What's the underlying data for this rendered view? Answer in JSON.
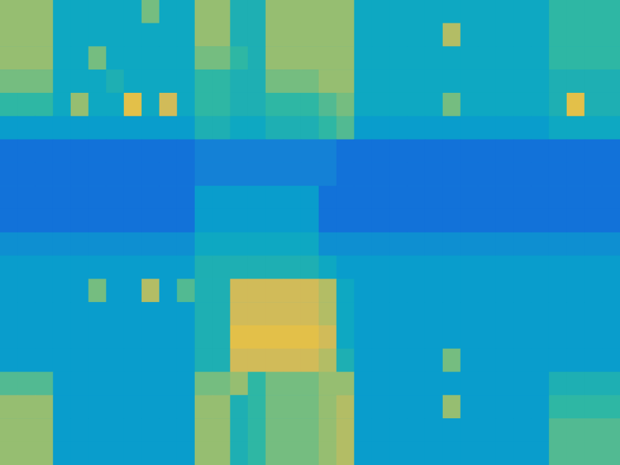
{
  "chart_data": {
    "type": "heatmap",
    "tick_labels": false,
    "grid": false,
    "color_range": [
      0,
      10
    ],
    "cells": [
      [
        6.5,
        6.5,
        6.5,
        4,
        4,
        4,
        4,
        4,
        6,
        4,
        4,
        6.5,
        6.5,
        4.5,
        4.5,
        6.5,
        6.5,
        6.5,
        6.5,
        6.5,
        4,
        4,
        4,
        4,
        4,
        4,
        4,
        4,
        4,
        4,
        4,
        5,
        5,
        5,
        5
      ],
      [
        6.5,
        6.5,
        6.5,
        4,
        4,
        4,
        4,
        4,
        4,
        4,
        4,
        6.5,
        6.5,
        4.5,
        4.5,
        6.5,
        6.5,
        6.5,
        6.5,
        6.5,
        4,
        4,
        4,
        4,
        4,
        7,
        4,
        4,
        4,
        4,
        4,
        5,
        5,
        5,
        5
      ],
      [
        6.5,
        6.5,
        6.5,
        4,
        4,
        6,
        4,
        4,
        4,
        4,
        4,
        6,
        6,
        5,
        4.5,
        6.5,
        6.5,
        6.5,
        6.5,
        6.5,
        4,
        4,
        4,
        4,
        4,
        4,
        4,
        4,
        4,
        4,
        4,
        5,
        5,
        5,
        5
      ],
      [
        6,
        6,
        6,
        4,
        4,
        4,
        4.5,
        4,
        4,
        4,
        4,
        5,
        5,
        4.5,
        4.5,
        6,
        6,
        6,
        6.5,
        6.5,
        4,
        4,
        4,
        4,
        4,
        4,
        4,
        4,
        4,
        4,
        4,
        4.5,
        4.5,
        4.5,
        4.5
      ],
      [
        5,
        5,
        5,
        4,
        6.5,
        4,
        4,
        8,
        4,
        7.5,
        4,
        5,
        5,
        4.5,
        4.5,
        5,
        5,
        5,
        5.5,
        6,
        4,
        4,
        4,
        4,
        4,
        6,
        4,
        4,
        4,
        4,
        4,
        4.5,
        8,
        4.5,
        4.5
      ],
      [
        3.5,
        3.5,
        3.5,
        3.5,
        3.5,
        3.5,
        3.5,
        3.5,
        3.5,
        3.5,
        3.5,
        4.5,
        4.5,
        4,
        4,
        4.5,
        4.5,
        4.5,
        5,
        5.5,
        3.5,
        3.5,
        3.5,
        3.5,
        3.5,
        3.5,
        3.5,
        3.5,
        3.5,
        3.5,
        3.5,
        4,
        4,
        4,
        4
      ],
      [
        2,
        2,
        2,
        2,
        2,
        2,
        2,
        2,
        2,
        2,
        2,
        2.5,
        2.5,
        2.5,
        2.5,
        2.5,
        2.5,
        2.5,
        2.5,
        2,
        2,
        2,
        2,
        2,
        2,
        2,
        2,
        2,
        2,
        2,
        2,
        2,
        2,
        2,
        2
      ],
      [
        2,
        2,
        2,
        2,
        2,
        2,
        2,
        2,
        2,
        2,
        2,
        2.5,
        2.5,
        2.5,
        2.5,
        2.5,
        2.5,
        2.5,
        2.5,
        2,
        2,
        2,
        2,
        2,
        2,
        2,
        2,
        2,
        2,
        2,
        2,
        2,
        2,
        2,
        2
      ],
      [
        2,
        2,
        2,
        2,
        2,
        2,
        2,
        2,
        2,
        2,
        2,
        3.5,
        3.5,
        3.5,
        3.5,
        3.5,
        3.5,
        3.5,
        2,
        2,
        2,
        2,
        2,
        2,
        2,
        2,
        2,
        2,
        2,
        2,
        2,
        2,
        2,
        2,
        2
      ],
      [
        2,
        2,
        2,
        2,
        2,
        2,
        2,
        2,
        2,
        2,
        2,
        3.5,
        3.5,
        3.5,
        3.5,
        3.5,
        3.5,
        3.5,
        2,
        2,
        2,
        2,
        2,
        2,
        2,
        2,
        2,
        2,
        2,
        2,
        2,
        2,
        2,
        2,
        2
      ],
      [
        3,
        3,
        3,
        3,
        3,
        3,
        3,
        3,
        3,
        3,
        3,
        4,
        4,
        4,
        4,
        4,
        4,
        4,
        3,
        3,
        3,
        3,
        3,
        3,
        3,
        3,
        3,
        3,
        3,
        3,
        3,
        3,
        3,
        3,
        3
      ],
      [
        3.5,
        3.5,
        3.5,
        3.5,
        3.5,
        3.5,
        3.5,
        3.5,
        3.5,
        3.5,
        3.5,
        4.5,
        4.5,
        4.5,
        4.5,
        4.5,
        4.5,
        4.5,
        4,
        3.5,
        3.5,
        3.5,
        3.5,
        3.5,
        3.5,
        3.5,
        3.5,
        3.5,
        3.5,
        3.5,
        3.5,
        3.5,
        3.5,
        3.5,
        3.5
      ],
      [
        3.5,
        3.5,
        3.5,
        3.5,
        3.5,
        6,
        3.5,
        3.5,
        7,
        3.5,
        5.5,
        4.5,
        4.5,
        7.5,
        7.5,
        7.5,
        7.5,
        7.5,
        7,
        4,
        3.5,
        3.5,
        3.5,
        3.5,
        3.5,
        3.5,
        3.5,
        3.5,
        3.5,
        3.5,
        3.5,
        3.5,
        3.5,
        3.5,
        3.5
      ],
      [
        3.5,
        3.5,
        3.5,
        3.5,
        3.5,
        3.5,
        3.5,
        3.5,
        3.5,
        3.5,
        3.5,
        4.5,
        4.5,
        7.5,
        7.5,
        7.5,
        7.5,
        7.5,
        7,
        4,
        3.5,
        3.5,
        3.5,
        3.5,
        3.5,
        3.5,
        3.5,
        3.5,
        3.5,
        3.5,
        3.5,
        3.5,
        3.5,
        3.5,
        3.5
      ],
      [
        3.5,
        3.5,
        3.5,
        3.5,
        3.5,
        3.5,
        3.5,
        3.5,
        3.5,
        3.5,
        3.5,
        4.5,
        4.5,
        8,
        8,
        8,
        8,
        8,
        7.5,
        4,
        3.5,
        3.5,
        3.5,
        3.5,
        3.5,
        3.5,
        3.5,
        3.5,
        3.5,
        3.5,
        3.5,
        3.5,
        3.5,
        3.5,
        3.5
      ],
      [
        3.5,
        3.5,
        3.5,
        3.5,
        3.5,
        3.5,
        3.5,
        3.5,
        3.5,
        3.5,
        3.5,
        4.5,
        4.5,
        7.5,
        7.5,
        7.5,
        7.5,
        7.5,
        7,
        4.5,
        3.5,
        3.5,
        3.5,
        3.5,
        3.5,
        6,
        3.5,
        3.5,
        3.5,
        3.5,
        3.5,
        3.5,
        3.5,
        3.5,
        3.5
      ],
      [
        5.5,
        5.5,
        5.5,
        3.5,
        3.5,
        3.5,
        3.5,
        3.5,
        3.5,
        3.5,
        3.5,
        6,
        6,
        6.5,
        5,
        6,
        6,
        6,
        6.5,
        6.5,
        3.5,
        3.5,
        3.5,
        3.5,
        3.5,
        3.5,
        3.5,
        3.5,
        3.5,
        3.5,
        3.5,
        4.5,
        4.5,
        4.5,
        4.5
      ],
      [
        6.5,
        6.5,
        6.5,
        3.5,
        3.5,
        3.5,
        3.5,
        3.5,
        3.5,
        3.5,
        3.5,
        6.5,
        6.5,
        4.5,
        5,
        6,
        6,
        6,
        6.5,
        7,
        3.5,
        3.5,
        3.5,
        3.5,
        3.5,
        6.5,
        3.5,
        3.5,
        3.5,
        3.5,
        3.5,
        5,
        5,
        5,
        5
      ],
      [
        6.5,
        6.5,
        6.5,
        3.5,
        3.5,
        3.5,
        3.5,
        3.5,
        3.5,
        3.5,
        3.5,
        6.5,
        6.5,
        4.5,
        5,
        6,
        6,
        6,
        6.5,
        7,
        3.5,
        3.5,
        3.5,
        3.5,
        3.5,
        3.5,
        3.5,
        3.5,
        3.5,
        3.5,
        3.5,
        5.5,
        5.5,
        5.5,
        5.5
      ],
      [
        6.5,
        6.5,
        6.5,
        3.5,
        3.5,
        3.5,
        3.5,
        3.5,
        3.5,
        3.5,
        3.5,
        6.5,
        6.5,
        4.5,
        5,
        6,
        6,
        6,
        6.5,
        7,
        3.5,
        3.5,
        3.5,
        3.5,
        3.5,
        3.5,
        3.5,
        3.5,
        3.5,
        3.5,
        3.5,
        5.5,
        5.5,
        5.5,
        5.5
      ]
    ]
  }
}
